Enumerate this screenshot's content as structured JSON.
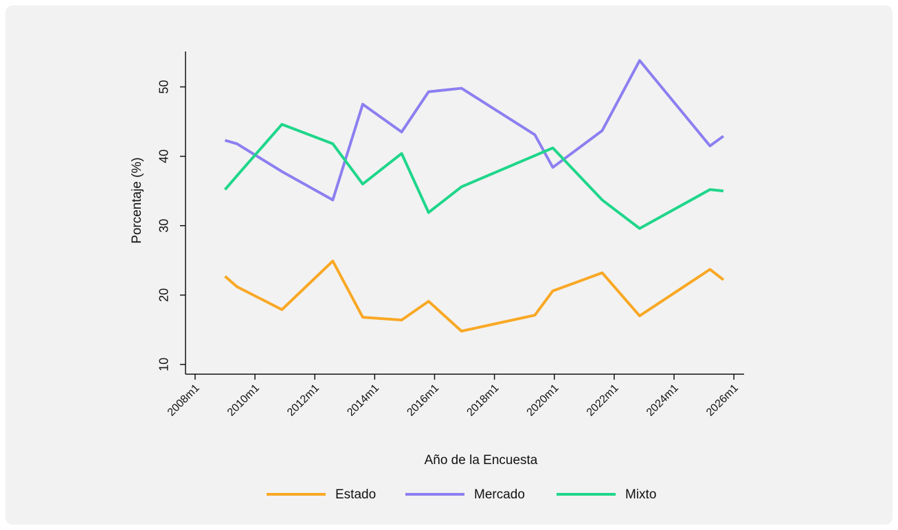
{
  "chart_data": {
    "type": "line",
    "x_label": "Año de la Encuesta",
    "y_label": "Porcentaje (%)",
    "x": [
      2009.0,
      2009.4,
      2010.9,
      2012.6,
      2013.6,
      2014.9,
      2015.8,
      2016.9,
      2019.35,
      2019.95,
      2021.6,
      2022.85,
      2025.2,
      2025.65
    ],
    "series": [
      {
        "name": "Estado",
        "color": "#f9a825",
        "values": [
          22.7,
          21.2,
          17.9,
          24.9,
          16.8,
          16.4,
          19.1,
          14.8,
          17.1,
          20.6,
          23.2,
          17.0,
          23.7,
          22.2
        ]
      },
      {
        "name": "Mercado",
        "color": "#8c7ff0",
        "values": [
          42.3,
          41.8,
          37.8,
          33.7,
          47.5,
          43.5,
          49.3,
          49.8,
          43.1,
          38.4,
          43.7,
          53.8,
          41.5,
          42.9
        ]
      },
      {
        "name": "Mixto",
        "color": "#1fd68a",
        "values": [
          35.2,
          37.2,
          44.6,
          41.8,
          36.0,
          40.4,
          31.9,
          35.6,
          40.1,
          41.2,
          33.7,
          29.6,
          35.2,
          35.0
        ]
      }
    ],
    "xlim": [
      2007.68,
      2026.34
    ],
    "xticks": [
      {
        "value": 2008,
        "label": "2008m1"
      },
      {
        "value": 2010,
        "label": "2010m1"
      },
      {
        "value": 2012,
        "label": "2012m1"
      },
      {
        "value": 2014,
        "label": "2014m1"
      },
      {
        "value": 2016,
        "label": "2016m1"
      },
      {
        "value": 2018,
        "label": "2018m1"
      },
      {
        "value": 2020,
        "label": "2020m1"
      },
      {
        "value": 2022,
        "label": "2022m1"
      },
      {
        "value": 2024,
        "label": "2024m1"
      },
      {
        "value": 2026,
        "label": "2026m1"
      }
    ],
    "ylim": [
      8.6,
      55.1
    ],
    "yticks": [
      10,
      20,
      30,
      40,
      50
    ],
    "grid": false,
    "legend": "bottom"
  }
}
